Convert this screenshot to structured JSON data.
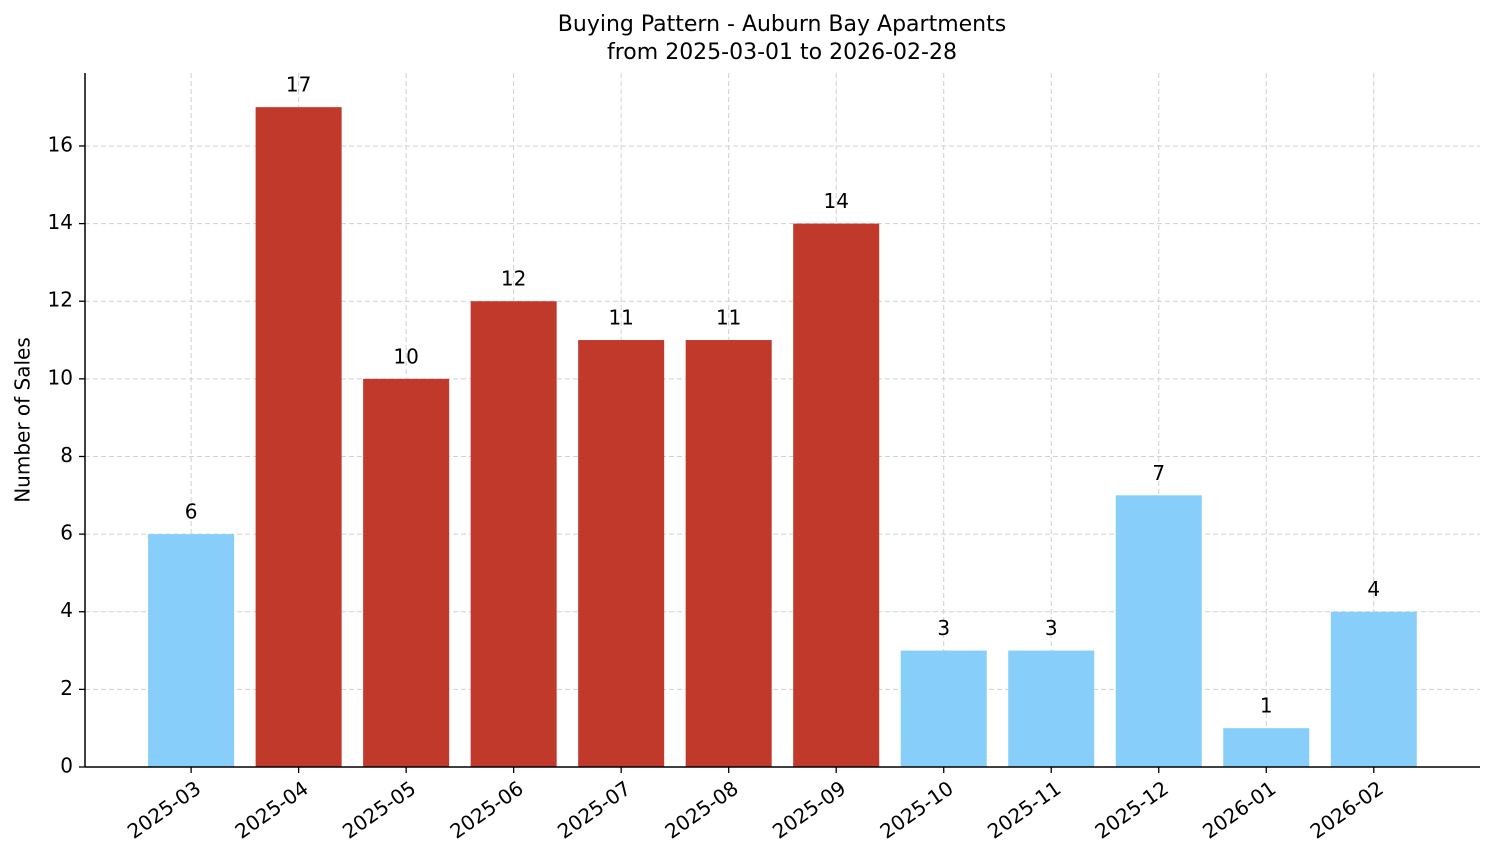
{
  "chart_data": {
    "type": "bar",
    "title": "Buying Pattern - Auburn Bay Apartments",
    "subtitle": "from 2025-03-01 to 2026-02-28",
    "y_label": "Number of Sales",
    "categories": [
      "2025-03",
      "2025-04",
      "2025-05",
      "2025-06",
      "2025-07",
      "2025-08",
      "2025-09",
      "2025-10",
      "2025-11",
      "2025-12",
      "2026-01",
      "2026-02"
    ],
    "values": [
      6,
      17,
      10,
      12,
      11,
      11,
      14,
      3,
      3,
      7,
      1,
      4
    ],
    "colors": [
      "#87cefa",
      "#c0392b",
      "#c0392b",
      "#c0392b",
      "#c0392b",
      "#c0392b",
      "#c0392b",
      "#87cefa",
      "#87cefa",
      "#87cefa",
      "#87cefa",
      "#87cefa"
    ],
    "ylim": [
      0,
      17.88
    ],
    "yticks": [
      0,
      2,
      4,
      6,
      8,
      10,
      12,
      14,
      16
    ],
    "grid": true
  }
}
